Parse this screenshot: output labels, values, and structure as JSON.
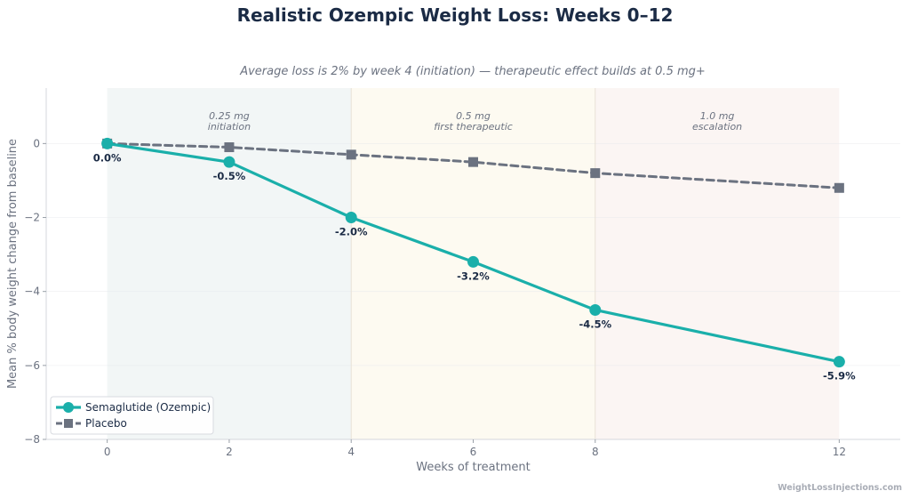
{
  "chart_data": {
    "type": "line",
    "title": "Realistic Ozempic Weight Loss: Weeks 0–12",
    "subtitle": "Average loss is 2% by week 4 (initiation) — therapeutic effect builds at 0.5 mg+",
    "xlabel": "Weeks of treatment",
    "ylabel": "Mean % body weight change from baseline",
    "xlim": [
      -1,
      13
    ],
    "ylim": [
      -8,
      1.5
    ],
    "xticks": [
      0,
      2,
      4,
      6,
      8,
      12
    ],
    "yticks": [
      0,
      -2,
      -4,
      -6,
      -8
    ],
    "ytick_labels": [
      "0",
      "−2",
      "−4",
      "−6",
      "−8"
    ],
    "grid": true,
    "legend_position": "bottom-left",
    "phases": [
      {
        "x_start": 0,
        "x_end": 4,
        "line1": "0.25 mg",
        "line2": "initiation",
        "color": "#e8efef"
      },
      {
        "x_start": 4,
        "x_end": 8,
        "line1": "0.5 mg",
        "line2": "first therapeutic",
        "color": "#fbf5e6"
      },
      {
        "x_start": 8,
        "x_end": 12,
        "line1": "1.0 mg",
        "line2": "escalation",
        "color": "#f8ece9"
      }
    ],
    "series": [
      {
        "name": "Semaglutide (Ozempic)",
        "x": [
          0,
          2,
          4,
          6,
          8,
          12
        ],
        "y": [
          0.0,
          -0.5,
          -2.0,
          -3.2,
          -4.5,
          -5.9
        ],
        "labels": [
          "0.0%",
          "-0.5%",
          "-2.0%",
          "-3.2%",
          "-4.5%",
          "-5.9%"
        ],
        "color": "#1aafaa",
        "marker": "circle",
        "style": "solid"
      },
      {
        "name": "Placebo",
        "x": [
          0,
          2,
          4,
          6,
          8,
          12
        ],
        "y": [
          0.0,
          -0.1,
          -0.3,
          -0.5,
          -0.8,
          -1.2
        ],
        "color": "#6b7280",
        "marker": "square",
        "style": "dashed"
      }
    ]
  },
  "watermark": "WeightLossInjections.com"
}
